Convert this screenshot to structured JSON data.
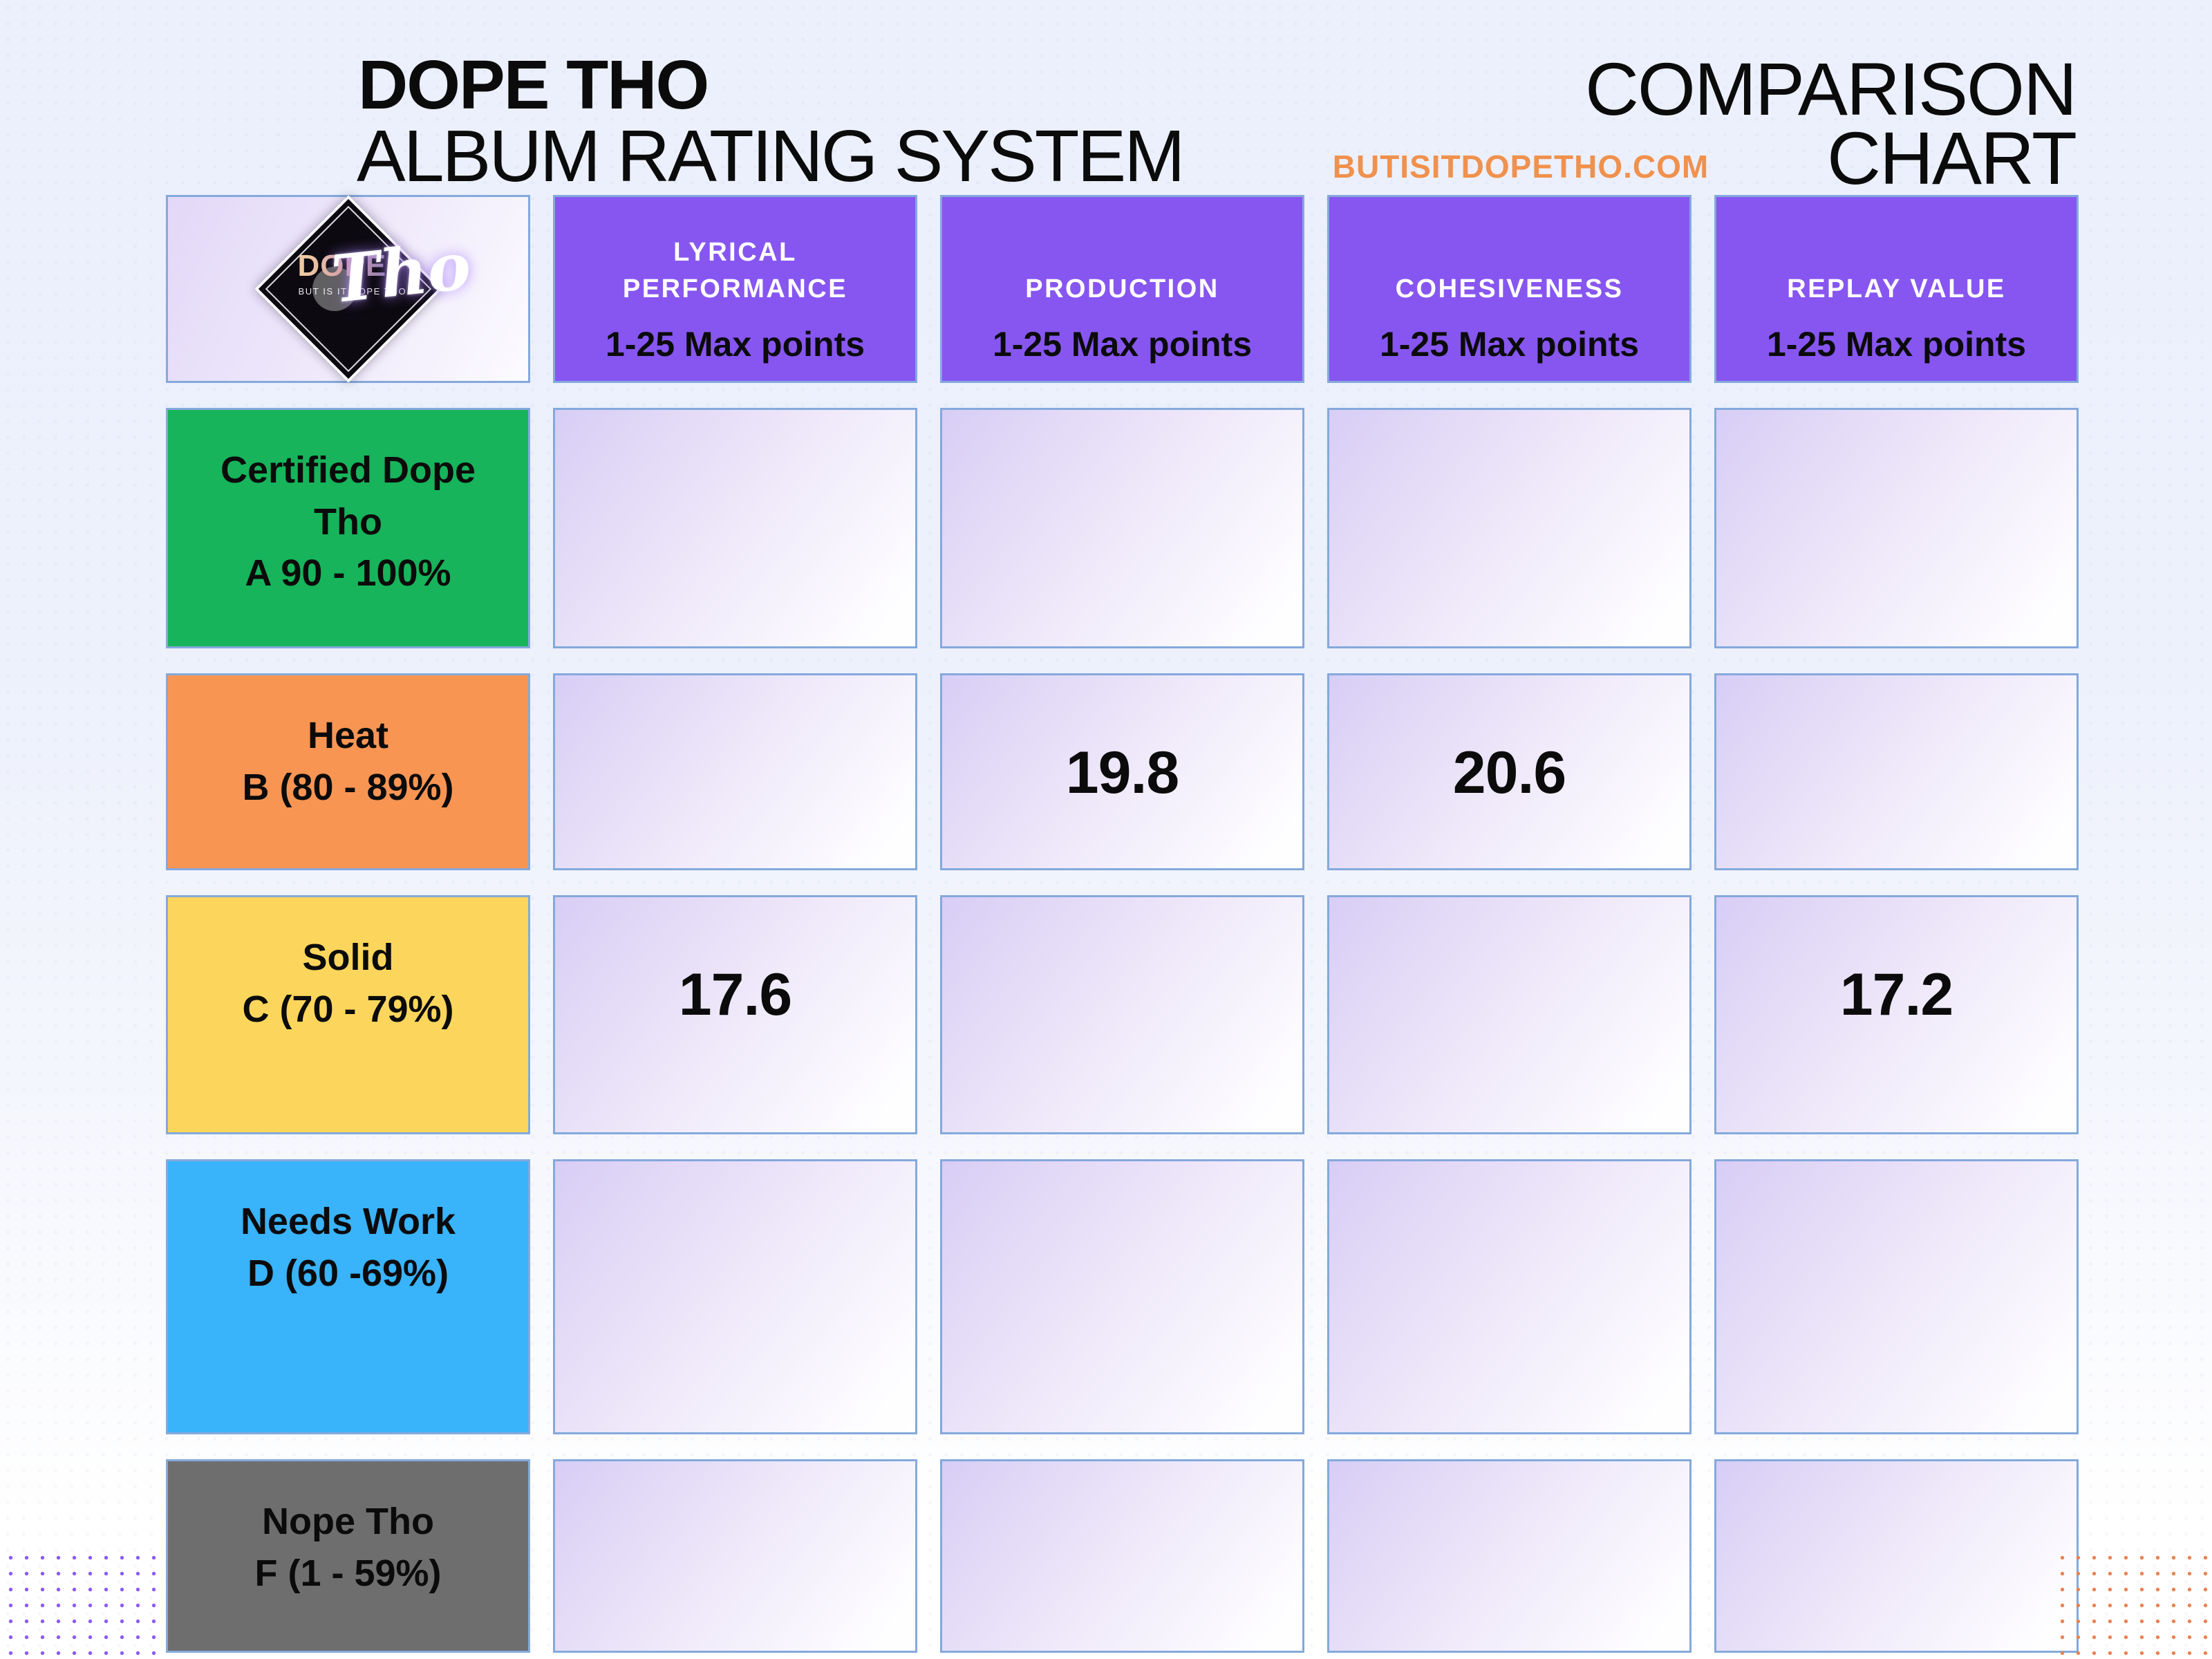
{
  "header": {
    "brand_title": "DOPE THO",
    "brand_subtitle": "ALBUM RATING SYSTEM",
    "comparison_line1": "COMPARISON",
    "comparison_line2": "CHART",
    "website": "BUTISITDOPETHO.COM"
  },
  "logo": {
    "word_top": "DOPE",
    "word_script": "Tho",
    "tagline": "BUT IS IT DOPE THO"
  },
  "columns": [
    {
      "label": "LYRICAL PERFORMANCE",
      "points": "1-25 Max points"
    },
    {
      "label": "PRODUCTION",
      "points": "1-25 Max points"
    },
    {
      "label": "COHESIVENESS",
      "points": "1-25 Max points"
    },
    {
      "label": "REPLAY VALUE",
      "points": "1-25 Max points"
    }
  ],
  "rows": [
    {
      "label": "Certified Dope Tho",
      "range": "A 90 - 100%",
      "color": "#17B45B",
      "values": [
        "",
        "",
        "",
        ""
      ]
    },
    {
      "label": "Heat",
      "range": "B (80 - 89%)",
      "color": "#F99553",
      "values": [
        "",
        "19.8",
        "20.6",
        ""
      ]
    },
    {
      "label": "Solid",
      "range": "C (70 - 79%)",
      "color": "#FCD65C",
      "values": [
        "17.6",
        "",
        "",
        "17.2"
      ]
    },
    {
      "label": "Needs Work",
      "range": "D (60 -69%)",
      "color": "#39B3FA",
      "values": [
        "",
        "",
        "",
        ""
      ]
    },
    {
      "label": "Nope Tho",
      "range": "F (1 - 59%)",
      "color": "#6E6E6E",
      "values": [
        "",
        "",
        "",
        ""
      ]
    }
  ],
  "theme": {
    "header_purple": "#8756F1",
    "cell_border_blue": "#84A9DC",
    "website_orange": "#F0914D",
    "dot_purple": "#8A5CF0",
    "dot_orange": "#E8834E"
  },
  "chart_data": {
    "type": "table",
    "title": "DOPE THO ALBUM RATING SYSTEM — COMPARISON CHART",
    "columns": [
      "LYRICAL PERFORMANCE (1-25 Max points)",
      "PRODUCTION (1-25 Max points)",
      "COHESIVENESS (1-25 Max points)",
      "REPLAY VALUE (1-25 Max points)"
    ],
    "rows": [
      "Certified Dope Tho (A 90 - 100%)",
      "Heat (B 80 - 89%)",
      "Solid (C 70 - 79%)",
      "Needs Work (D 60 - 69%)",
      "Nope Tho (F 1 - 59%)"
    ],
    "values": [
      [
        null,
        null,
        null,
        null
      ],
      [
        null,
        19.8,
        20.6,
        null
      ],
      [
        17.6,
        null,
        null,
        17.2
      ],
      [
        null,
        null,
        null,
        null
      ],
      [
        null,
        null,
        null,
        null
      ]
    ]
  }
}
